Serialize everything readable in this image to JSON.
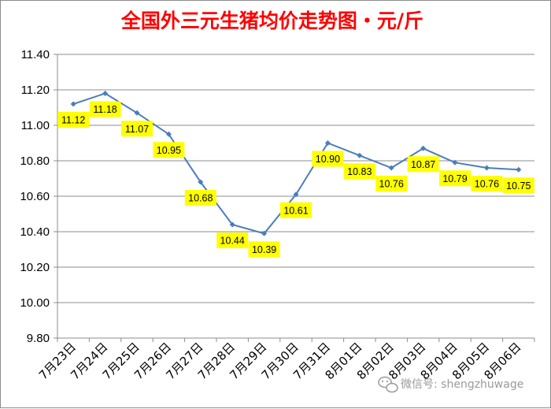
{
  "chart_data": {
    "type": "line",
    "title": "全国外三元生猪均价走势图・元/斤",
    "categories": [
      "7月23日",
      "7月24日",
      "7月25日",
      "7月26日",
      "7月27日",
      "7月28日",
      "7月29日",
      "7月30日",
      "7月31日",
      "8月01日",
      "8月02日",
      "8月03日",
      "8月04日",
      "8月05日",
      "8月06日"
    ],
    "series": [
      {
        "values": [
          11.12,
          11.18,
          11.07,
          10.95,
          10.68,
          10.44,
          10.39,
          10.61,
          10.9,
          10.83,
          10.76,
          10.87,
          10.79,
          10.76,
          10.75
        ]
      }
    ],
    "data_labels": [
      "11.12",
      "11.18",
      "11.07",
      "10.95",
      "10.68",
      "10.44",
      "10.39",
      "10.61",
      "10.90",
      "10.83",
      "10.76",
      "10.87",
      "10.79",
      "10.76",
      "10.75"
    ],
    "ylim": [
      9.8,
      11.4
    ],
    "yticks": [
      "9.80",
      "10.00",
      "10.20",
      "10.40",
      "10.60",
      "10.80",
      "11.00",
      "11.20",
      "11.40"
    ],
    "grid": true,
    "line_color": "#4a7ebb",
    "label_bg_color": "#ffff00"
  },
  "watermark": {
    "icon": "wechat-icon",
    "text": "微信号: shengzhuwage"
  }
}
